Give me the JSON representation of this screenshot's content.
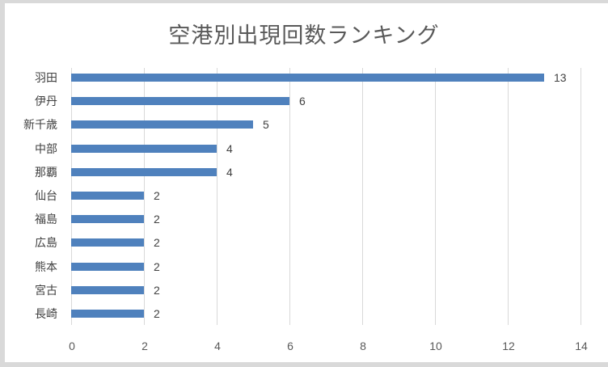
{
  "chart_data": {
    "type": "bar",
    "orientation": "horizontal",
    "title": "空港別出現回数ランキング",
    "categories": [
      "羽田",
      "伊丹",
      "新千歳",
      "中部",
      "那覇",
      "仙台",
      "福島",
      "広島",
      "熊本",
      "宮古",
      "長崎"
    ],
    "values": [
      13,
      6,
      5,
      4,
      4,
      2,
      2,
      2,
      2,
      2,
      2
    ],
    "xlabel": "",
    "ylabel": "",
    "xlim": [
      0,
      14
    ],
    "xticks": [
      0,
      2,
      4,
      6,
      8,
      10,
      12,
      14
    ],
    "grid": true,
    "data_labels": true,
    "legend": null,
    "bar_color": "#4f81bd"
  }
}
